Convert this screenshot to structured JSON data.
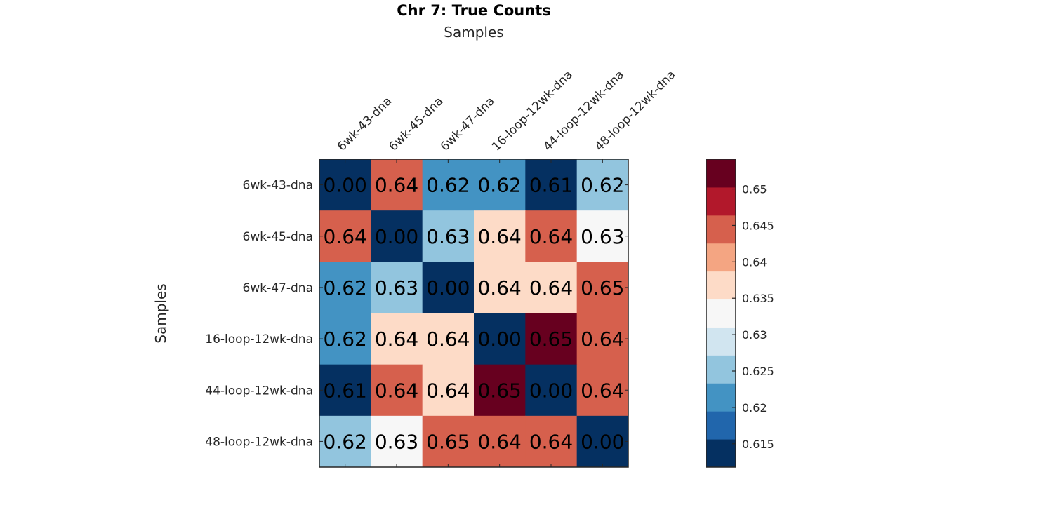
{
  "chart_data": {
    "type": "heatmap",
    "title": "Chr 7: True Counts",
    "xlabel": "Samples",
    "ylabel": "Samples",
    "x_labels": [
      "6wk-43-dna",
      "6wk-45-dna",
      "6wk-47-dna",
      "16-loop-12wk-dna",
      "44-loop-12wk-dna",
      "48-loop-12wk-dna"
    ],
    "y_labels": [
      "6wk-43-dna",
      "6wk-45-dna",
      "6wk-47-dna",
      "16-loop-12wk-dna",
      "44-loop-12wk-dna",
      "48-loop-12wk-dna"
    ],
    "cell_text": [
      [
        "0.00",
        "0.64",
        "0.62",
        "0.62",
        "0.61",
        "0.62"
      ],
      [
        "0.64",
        "0.00",
        "0.63",
        "0.64",
        "0.64",
        "0.63"
      ],
      [
        "0.62",
        "0.63",
        "0.00",
        "0.64",
        "0.64",
        "0.65"
      ],
      [
        "0.62",
        "0.64",
        "0.64",
        "0.00",
        "0.65",
        "0.64"
      ],
      [
        "0.61",
        "0.64",
        "0.64",
        "0.65",
        "0.00",
        "0.64"
      ],
      [
        "0.62",
        "0.63",
        "0.65",
        "0.64",
        "0.64",
        "0.00"
      ]
    ],
    "values": [
      [
        0.0,
        0.644,
        0.621,
        0.622,
        0.613,
        0.624
      ],
      [
        0.644,
        0.0,
        0.626,
        0.637,
        0.644,
        0.633
      ],
      [
        0.621,
        0.626,
        0.0,
        0.637,
        0.637,
        0.6455
      ],
      [
        0.622,
        0.637,
        0.637,
        0.0,
        0.652,
        0.644
      ],
      [
        0.613,
        0.644,
        0.637,
        0.652,
        0.0,
        0.644
      ],
      [
        0.624,
        0.633,
        0.6455,
        0.644,
        0.644,
        0.0
      ]
    ],
    "colorbar": {
      "range": [
        0.6118,
        0.6541
      ],
      "ticks": [
        0.615,
        0.62,
        0.625,
        0.63,
        0.635,
        0.64,
        0.645,
        0.65
      ],
      "tick_labels": [
        "0.615",
        "0.62",
        "0.625",
        "0.63",
        "0.635",
        "0.64",
        "0.645",
        "0.65"
      ],
      "colors": [
        "#053061",
        "#2166ac",
        "#4393c3",
        "#92c5de",
        "#d1e5f0",
        "#f7f7f7",
        "#fddbc7",
        "#f4a582",
        "#d6604d",
        "#b2182b",
        "#67001f"
      ]
    },
    "grid": false,
    "legend": "colorbar-right"
  }
}
